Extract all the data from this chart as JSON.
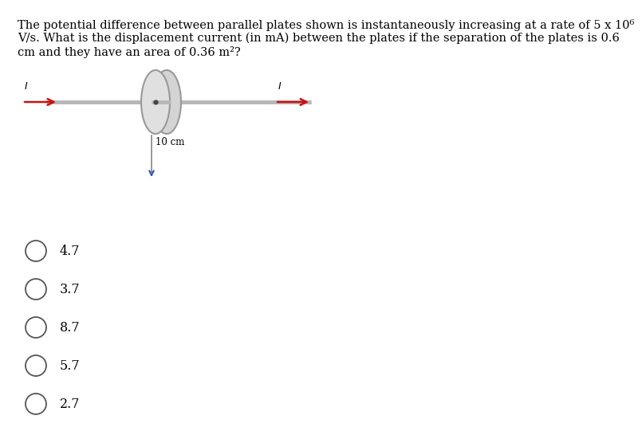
{
  "background_color": "#ffffff",
  "line1": "The potential difference between parallel plates shown is instantaneously increasing at a rate of 5 x 10⁶",
  "line2": "V/s. What is the displacement current (in mA) between the plates if the separation of the plates is 0.6",
  "line3": "cm and they have an area of 0.36 m²?",
  "options": [
    "4.7",
    "3.7",
    "8.7",
    "5.7",
    "2.7"
  ],
  "text_fontsize": 10.5,
  "option_fontsize": 11.5,
  "label_fontsize": 8.5,
  "current_fontsize": 9,
  "wire_color": "#b8b8b8",
  "arrow_color": "#cc1111",
  "plate_face_color": "#d4d4d4",
  "plate_edge_color": "#999999",
  "tick_color": "#2255bb",
  "tick_line_color": "#888888",
  "option_circle_color": "#555555",
  "text_color": "#000000"
}
